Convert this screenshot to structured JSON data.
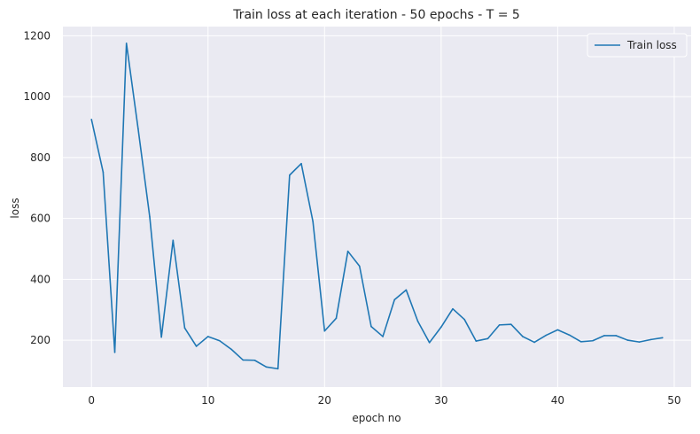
{
  "chart_data": {
    "type": "line",
    "title": "Train loss at each iteration - 50 epochs - T = 5",
    "xlabel": "epoch no",
    "ylabel": "loss",
    "xlim": [
      -2.45,
      51.45
    ],
    "ylim": [
      46,
      1230
    ],
    "xticks": [
      0,
      10,
      20,
      30,
      40,
      50
    ],
    "yticks": [
      200,
      400,
      600,
      800,
      1000,
      1200
    ],
    "grid": true,
    "legend_position": "top-right",
    "colors": {
      "background": "#eaeaf2",
      "grid": "#ffffff",
      "series": "#1f77b4"
    },
    "series": [
      {
        "name": "Train loss",
        "x": [
          0,
          1,
          2,
          3,
          4,
          5,
          6,
          7,
          8,
          9,
          10,
          11,
          12,
          13,
          14,
          15,
          16,
          17,
          18,
          19,
          20,
          21,
          22,
          23,
          24,
          25,
          26,
          27,
          28,
          29,
          30,
          31,
          32,
          33,
          34,
          35,
          36,
          37,
          38,
          39,
          40,
          41,
          42,
          43,
          44,
          45,
          46,
          47,
          48,
          49
        ],
        "values": [
          925,
          752,
          160,
          1175,
          895,
          605,
          210,
          528,
          240,
          180,
          212,
          198,
          170,
          135,
          134,
          112,
          106,
          742,
          780,
          590,
          230,
          272,
          492,
          443,
          245,
          212,
          333,
          365,
          262,
          192,
          243,
          303,
          268,
          197,
          205,
          250,
          252,
          212,
          193,
          216,
          234,
          217,
          195,
          198,
          215,
          215,
          200,
          194,
          202,
          208
        ]
      }
    ]
  }
}
